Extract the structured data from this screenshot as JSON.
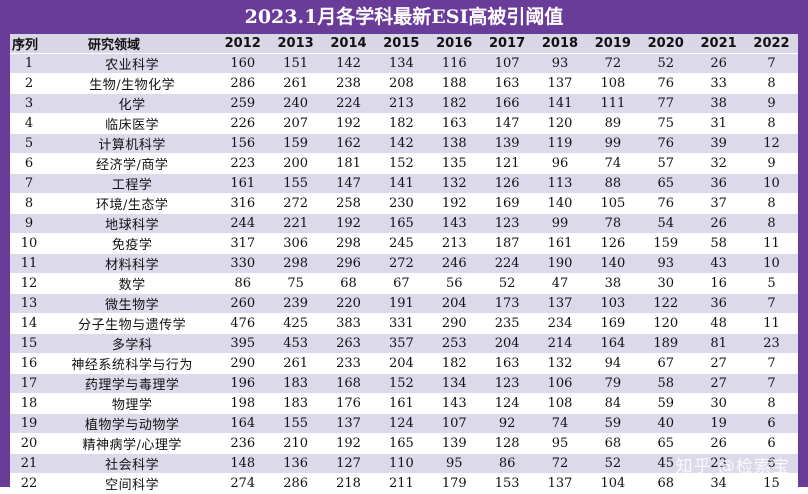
{
  "title": "2023.1月各学科最新ESI高被引阈值",
  "header": {
    "index_label": "序列",
    "field_label": "研究领域",
    "years": [
      "2012",
      "2013",
      "2014",
      "2015",
      "2016",
      "2017",
      "2018",
      "2019",
      "2020",
      "2021",
      "2022"
    ]
  },
  "rows": [
    {
      "idx": "1",
      "field": "农业科学",
      "values": [
        "160",
        "151",
        "142",
        "134",
        "116",
        "107",
        "93",
        "72",
        "52",
        "26",
        "7"
      ]
    },
    {
      "idx": "2",
      "field": "生物/生物化学",
      "values": [
        "286",
        "261",
        "238",
        "208",
        "188",
        "163",
        "137",
        "108",
        "76",
        "33",
        "8"
      ]
    },
    {
      "idx": "3",
      "field": "化学",
      "values": [
        "259",
        "240",
        "224",
        "213",
        "182",
        "166",
        "141",
        "111",
        "77",
        "38",
        "9"
      ]
    },
    {
      "idx": "4",
      "field": "临床医学",
      "values": [
        "226",
        "207",
        "192",
        "182",
        "163",
        "147",
        "120",
        "89",
        "75",
        "31",
        "8"
      ]
    },
    {
      "idx": "5",
      "field": "计算机科学",
      "values": [
        "156",
        "159",
        "162",
        "142",
        "138",
        "139",
        "119",
        "99",
        "76",
        "39",
        "12"
      ]
    },
    {
      "idx": "6",
      "field": "经济学/商学",
      "values": [
        "223",
        "200",
        "181",
        "152",
        "135",
        "121",
        "96",
        "74",
        "57",
        "32",
        "9"
      ]
    },
    {
      "idx": "7",
      "field": "工程学",
      "values": [
        "161",
        "155",
        "147",
        "141",
        "132",
        "126",
        "113",
        "88",
        "65",
        "36",
        "10"
      ]
    },
    {
      "idx": "8",
      "field": "环境/生态学",
      "values": [
        "316",
        "272",
        "258",
        "230",
        "192",
        "169",
        "140",
        "105",
        "76",
        "37",
        "8"
      ]
    },
    {
      "idx": "9",
      "field": "地球科学",
      "values": [
        "244",
        "221",
        "192",
        "165",
        "143",
        "123",
        "99",
        "78",
        "54",
        "26",
        "8"
      ]
    },
    {
      "idx": "10",
      "field": "免疫学",
      "values": [
        "317",
        "306",
        "298",
        "245",
        "213",
        "187",
        "161",
        "126",
        "159",
        "58",
        "11"
      ]
    },
    {
      "idx": "11",
      "field": "材料科学",
      "values": [
        "330",
        "298",
        "296",
        "272",
        "246",
        "224",
        "190",
        "140",
        "93",
        "43",
        "10"
      ]
    },
    {
      "idx": "12",
      "field": "数学",
      "values": [
        "86",
        "75",
        "68",
        "67",
        "56",
        "52",
        "47",
        "38",
        "30",
        "16",
        "5"
      ]
    },
    {
      "idx": "13",
      "field": "微生物学",
      "values": [
        "260",
        "239",
        "220",
        "191",
        "204",
        "173",
        "137",
        "103",
        "122",
        "36",
        "7"
      ]
    },
    {
      "idx": "14",
      "field": "分子生物与遗传学",
      "values": [
        "476",
        "425",
        "383",
        "331",
        "290",
        "235",
        "234",
        "169",
        "120",
        "48",
        "11"
      ]
    },
    {
      "idx": "15",
      "field": "多学科",
      "values": [
        "395",
        "453",
        "263",
        "357",
        "253",
        "204",
        "214",
        "164",
        "189",
        "81",
        "23"
      ]
    },
    {
      "idx": "16",
      "field": "神经系统科学与行为",
      "values": [
        "290",
        "261",
        "233",
        "204",
        "182",
        "163",
        "132",
        "94",
        "67",
        "27",
        "7"
      ]
    },
    {
      "idx": "17",
      "field": "药理学与毒理学",
      "values": [
        "196",
        "183",
        "168",
        "152",
        "134",
        "123",
        "106",
        "79",
        "58",
        "27",
        "7"
      ]
    },
    {
      "idx": "18",
      "field": "物理学",
      "values": [
        "198",
        "183",
        "176",
        "161",
        "143",
        "124",
        "108",
        "84",
        "59",
        "30",
        "8"
      ]
    },
    {
      "idx": "19",
      "field": "植物学与动物学",
      "values": [
        "164",
        "155",
        "137",
        "124",
        "107",
        "92",
        "74",
        "59",
        "40",
        "19",
        "6"
      ]
    },
    {
      "idx": "20",
      "field": "精神病学/心理学",
      "values": [
        "236",
        "210",
        "192",
        "165",
        "139",
        "128",
        "95",
        "68",
        "65",
        "26",
        "6"
      ]
    },
    {
      "idx": "21",
      "field": "社会科学",
      "values": [
        "148",
        "136",
        "127",
        "110",
        "95",
        "86",
        "72",
        "52",
        "45",
        "23",
        "6"
      ]
    },
    {
      "idx": "22",
      "field": "空间科学",
      "values": [
        "274",
        "286",
        "218",
        "211",
        "179",
        "153",
        "137",
        "104",
        "68",
        "34",
        "15"
      ]
    }
  ],
  "watermark": "知乎 @检索宝",
  "colors": {
    "frame": "#6a3c9a",
    "header_bg": "#d9d6e6",
    "stripe": "#dcd9ea",
    "white": "#ffffff"
  }
}
